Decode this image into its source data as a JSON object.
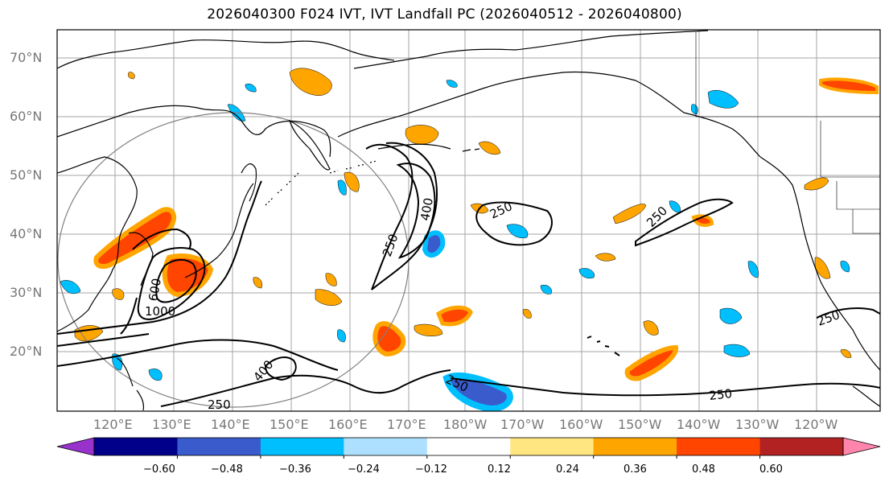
{
  "title": "2026040300 F024 IVT, IVT Landfall PC (2026040512 - 2026040800)",
  "lat_labels": [
    "70°N",
    "60°N",
    "50°N",
    "40°N",
    "30°N",
    "20°N"
  ],
  "lon_labels": [
    "120°E",
    "130°E",
    "140°E",
    "150°E",
    "160°E",
    "170°E",
    "180°W",
    "170°W",
    "160°W",
    "150°W",
    "140°W",
    "130°W",
    "120°W"
  ],
  "colorbar": {
    "colors": [
      "#9932CC",
      "#00008B",
      "#3A5BCB",
      "#00BFFF",
      "#ADDFFF",
      "#FFFFFF",
      "#FFE680",
      "#FFA500",
      "#FF4500",
      "#B22222",
      "#FF85AD"
    ],
    "tick_labels": [
      "−0.60",
      "−0.48",
      "−0.36",
      "−0.24",
      "−0.12",
      "0.12",
      "0.24",
      "0.36",
      "0.48",
      "0.60"
    ]
  },
  "contour_labels": [
    "250",
    "250",
    "250",
    "250",
    "250",
    "250",
    "250",
    "400",
    "400",
    "600",
    "1000"
  ],
  "colors": {
    "grid": "#a6a6a6",
    "contour": "#000000",
    "coast": "#000000",
    "circle": "#808080"
  }
}
